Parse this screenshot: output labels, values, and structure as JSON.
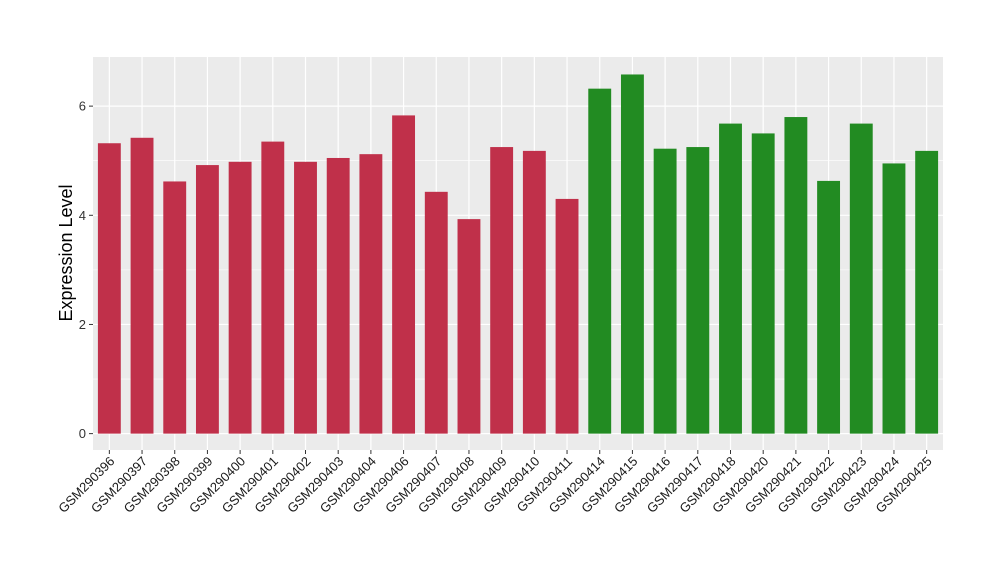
{
  "chart_data": {
    "type": "bar",
    "title": "",
    "xlabel": "",
    "ylabel": "Expression Level",
    "ylim": [
      -0.3,
      6.9
    ],
    "yticks": [
      0,
      2,
      4,
      6
    ],
    "grid": true,
    "legend": "none",
    "categories": [
      "GSM290396",
      "GSM290397",
      "GSM290398",
      "GSM290399",
      "GSM290400",
      "GSM290401",
      "GSM290402",
      "GSM290403",
      "GSM290404",
      "GSM290406",
      "GSM290407",
      "GSM290408",
      "GSM290409",
      "GSM290410",
      "GSM290411",
      "GSM290414",
      "GSM290415",
      "GSM290416",
      "GSM290417",
      "GSM290418",
      "GSM290420",
      "GSM290421",
      "GSM290422",
      "GSM290423",
      "GSM290424",
      "GSM290425"
    ],
    "values": [
      5.32,
      5.42,
      4.62,
      4.92,
      4.98,
      5.35,
      4.98,
      5.05,
      5.12,
      5.83,
      4.43,
      3.93,
      5.25,
      5.18,
      4.3,
      6.32,
      6.58,
      5.22,
      5.25,
      5.68,
      5.5,
      5.8,
      4.63,
      5.68,
      4.95,
      5.18
    ],
    "groups": [
      "g1",
      "g1",
      "g1",
      "g1",
      "g1",
      "g1",
      "g1",
      "g1",
      "g1",
      "g1",
      "g1",
      "g1",
      "g1",
      "g1",
      "g1",
      "g2",
      "g2",
      "g2",
      "g2",
      "g2",
      "g2",
      "g2",
      "g2",
      "g2",
      "g2",
      "g2"
    ],
    "group_colors": {
      "g1": "#c0304a",
      "g2": "#228b22"
    },
    "panel_color": "#ebebeb",
    "grid_color": "#ffffff"
  }
}
